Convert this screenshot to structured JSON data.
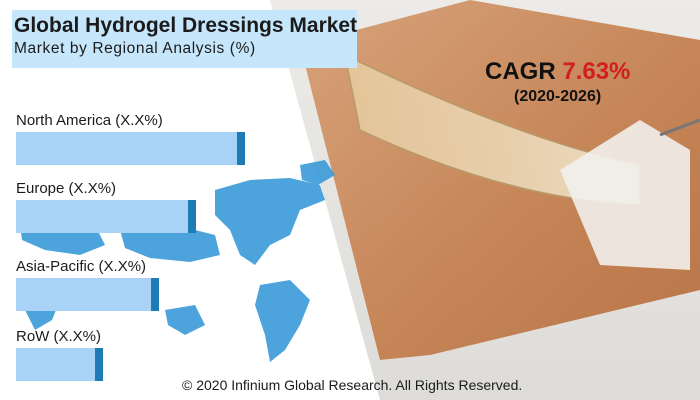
{
  "title": "Global Hydrogel Dressings Market",
  "subtitle": "Market by Regional Analysis (%)",
  "cagr": {
    "label": "CAGR",
    "value": "7.63%",
    "period": "(2020-2026)"
  },
  "footer": "© 2020 Infinium Global Research. All Rights Reserved.",
  "colors": {
    "bar": "#a8d3f6",
    "bar_cap": "#1f7bb3",
    "title_box": "#c5e6fb",
    "cagr_value": "#d11f1f",
    "map": "#3a9bd9"
  },
  "icons": [
    "world-map",
    "hydrogel-dressing-photo"
  ],
  "chart_data": {
    "type": "bar",
    "orientation": "horizontal",
    "title": "Global Hydrogel Dressings Market",
    "subtitle": "Market by Regional Analysis (%)",
    "categories": [
      "North America (X.X%)",
      "Europe (X.X%)",
      "Asia-Pacific (X.X%)",
      "RoW (X.X%)"
    ],
    "values": [
      37,
      29,
      23,
      14
    ],
    "xlim": [
      0,
      50
    ],
    "grid": false,
    "legend": "none"
  }
}
